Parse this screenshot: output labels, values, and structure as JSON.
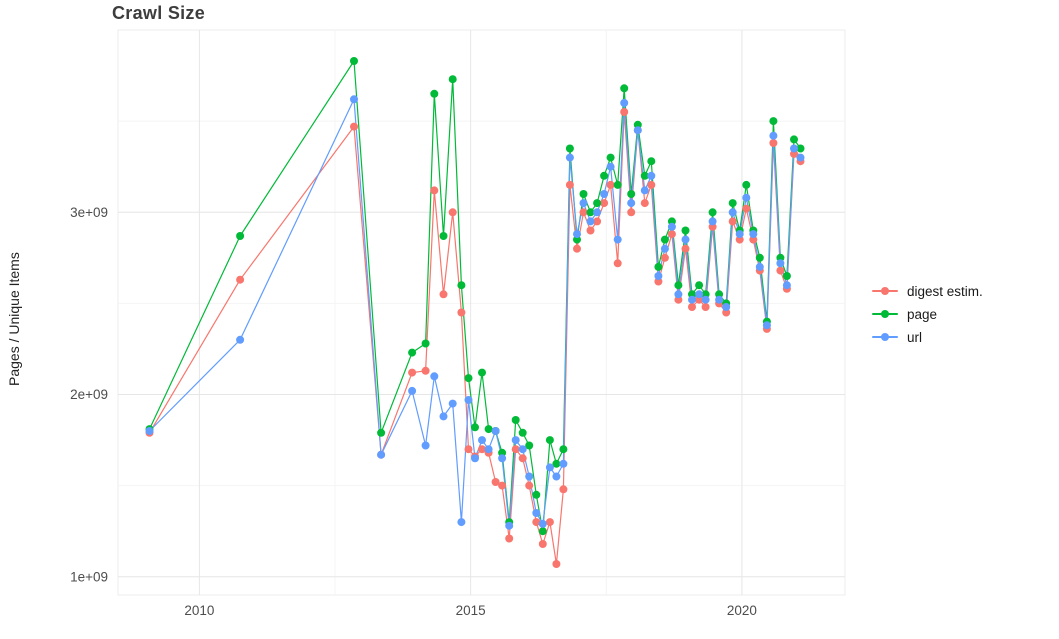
{
  "chart_data": {
    "type": "line",
    "title": "Crawl Size",
    "xlabel": "",
    "ylabel": "Pages / Unique Items",
    "legend_position": "right",
    "grid": true,
    "background_color": "#ffffff",
    "grid_major_color": "#e6e6e6",
    "grid_minor_color": "#f4f4f4",
    "panel_border_color": "#ececec",
    "axis_text_color": "#4d4d4d",
    "values_unit": "pages / unique items (×1e9)",
    "xlim": [
      2008.5,
      2021.9
    ],
    "ylim_e9": [
      0.9,
      4.0
    ],
    "x_ticks": [
      {
        "value": 2010,
        "label": "2010"
      },
      {
        "value": 2015,
        "label": "2015"
      },
      {
        "value": 2020,
        "label": "2020"
      }
    ],
    "y_ticks": [
      {
        "value_e9": 1,
        "label": "1e+09"
      },
      {
        "value_e9": 2,
        "label": "2e+09"
      },
      {
        "value_e9": 3,
        "label": "3e+09"
      }
    ],
    "x_minor_gridlines": [
      2012.5,
      2017.5
    ],
    "y_minor_gridlines_e9": [
      1.5,
      2.5,
      3.5
    ],
    "x": [
      2009.08,
      2010.75,
      2012.85,
      2013.35,
      2013.92,
      2014.17,
      2014.33,
      2014.5,
      2014.67,
      2014.83,
      2014.96,
      2015.08,
      2015.21,
      2015.33,
      2015.46,
      2015.58,
      2015.71,
      2015.83,
      2015.96,
      2016.08,
      2016.21,
      2016.33,
      2016.46,
      2016.58,
      2016.71,
      2016.83,
      2016.96,
      2017.08,
      2017.21,
      2017.33,
      2017.46,
      2017.58,
      2017.71,
      2017.83,
      2017.96,
      2018.08,
      2018.21,
      2018.33,
      2018.46,
      2018.58,
      2018.71,
      2018.83,
      2018.96,
      2019.08,
      2019.21,
      2019.33,
      2019.46,
      2019.58,
      2019.71,
      2019.83,
      2019.96,
      2020.08,
      2020.21,
      2020.33,
      2020.46,
      2020.58,
      2020.71,
      2020.83,
      2020.96,
      2021.08
    ],
    "series": [
      {
        "name": "digest estim.",
        "color": "#F8766D",
        "values_e9": [
          1.79,
          2.63,
          3.47,
          1.67,
          2.12,
          2.13,
          3.12,
          2.55,
          3.0,
          2.45,
          1.7,
          1.66,
          1.7,
          1.68,
          1.52,
          1.5,
          1.21,
          1.7,
          1.65,
          1.5,
          1.3,
          1.18,
          1.3,
          1.07,
          1.48,
          3.15,
          2.8,
          3.0,
          2.9,
          2.95,
          3.05,
          3.15,
          2.72,
          3.55,
          3.0,
          3.45,
          3.05,
          3.15,
          2.62,
          2.75,
          2.88,
          2.52,
          2.8,
          2.48,
          2.52,
          2.48,
          2.92,
          2.5,
          2.45,
          2.95,
          2.85,
          3.02,
          2.85,
          2.68,
          2.36,
          3.38,
          2.68,
          2.58,
          3.32,
          3.28
        ]
      },
      {
        "name": "page",
        "color": "#00BA38",
        "values_e9": [
          1.81,
          2.87,
          3.83,
          1.79,
          2.23,
          2.28,
          3.65,
          2.87,
          3.73,
          2.6,
          2.09,
          1.82,
          2.12,
          1.81,
          1.8,
          1.68,
          1.3,
          1.86,
          1.79,
          1.72,
          1.45,
          1.25,
          1.75,
          1.62,
          1.7,
          3.35,
          2.85,
          3.1,
          3.0,
          3.05,
          3.2,
          3.3,
          3.15,
          3.68,
          3.1,
          3.48,
          3.2,
          3.28,
          2.7,
          2.85,
          2.95,
          2.6,
          2.9,
          2.55,
          2.6,
          2.55,
          3.0,
          2.55,
          2.5,
          3.05,
          2.9,
          3.15,
          2.9,
          2.75,
          2.4,
          3.5,
          2.75,
          2.65,
          3.4,
          3.35
        ]
      },
      {
        "name": "url",
        "color": "#619CFF",
        "values_e9": [
          1.8,
          2.3,
          3.62,
          1.67,
          2.02,
          1.72,
          2.1,
          1.88,
          1.95,
          1.3,
          1.97,
          1.65,
          1.75,
          1.7,
          1.8,
          1.65,
          1.28,
          1.75,
          1.7,
          1.55,
          1.35,
          1.29,
          1.6,
          1.55,
          1.62,
          3.3,
          2.88,
          3.05,
          2.95,
          3.0,
          3.1,
          3.25,
          2.85,
          3.6,
          3.05,
          3.45,
          3.12,
          3.2,
          2.65,
          2.8,
          2.92,
          2.55,
          2.85,
          2.52,
          2.55,
          2.52,
          2.95,
          2.52,
          2.48,
          3.0,
          2.88,
          3.08,
          2.88,
          2.7,
          2.38,
          3.42,
          2.72,
          2.6,
          3.35,
          3.3
        ]
      }
    ]
  }
}
